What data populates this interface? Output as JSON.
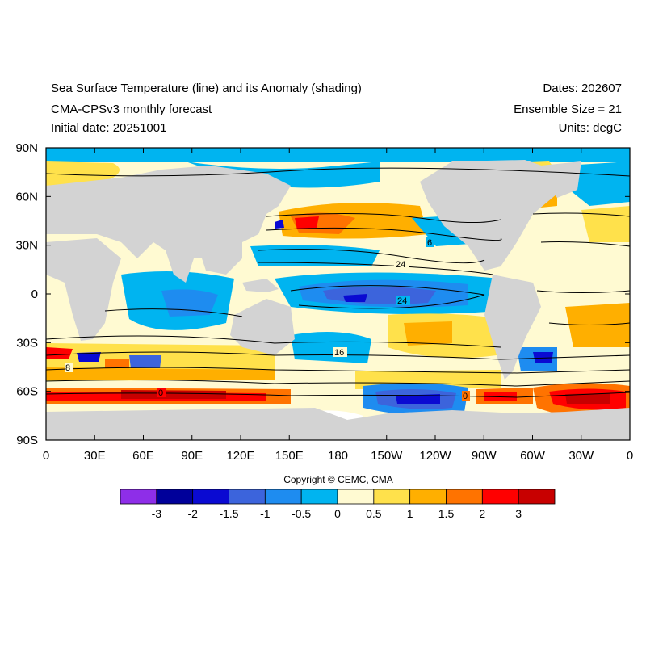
{
  "header": {
    "title": "Sea Surface Temperature (line) and its Anomaly (shading)",
    "model": "CMA-CPSv3 monthly forecast",
    "initial_date": "Initial date: 20251001",
    "dates": "Dates: 202607",
    "ensemble": "Ensemble Size = 21",
    "units": "Units: degC"
  },
  "axes": {
    "lat_labels": [
      "90N",
      "60N",
      "30N",
      "0",
      "30S",
      "60S",
      "90S"
    ],
    "lon_labels": [
      "0",
      "30E",
      "60E",
      "90E",
      "120E",
      "150E",
      "180",
      "150W",
      "120W",
      "90W",
      "60W",
      "30W",
      "0"
    ]
  },
  "contour_labels": [
    "24",
    "24",
    "16",
    "8",
    "6",
    "0",
    "0"
  ],
  "copyright": "Copyright © CEMC, CMA",
  "colorbar": {
    "colors": [
      "#8e2ee8",
      "#00009a",
      "#0a0ad2",
      "#3c64dc",
      "#1e8cf0",
      "#00b4f0",
      "#fffad2",
      "#ffe14b",
      "#ffaf00",
      "#ff7300",
      "#ff0000",
      "#c80000"
    ],
    "labels": [
      "-3",
      "-2",
      "-1.5",
      "-1",
      "-0.5",
      "0",
      "0.5",
      "1",
      "1.5",
      "2",
      "3"
    ]
  },
  "map_colors": {
    "land": "#d3d3d3",
    "neutral": "#fffad2",
    "cool": "#00b4f0",
    "cooler": "#1e8cf0",
    "cold": "#3c64dc",
    "colder": "#0a0ad2",
    "warm": "#ffe14b",
    "warmer": "#ffaf00",
    "hot": "#ff7300",
    "hotter": "#ff0000",
    "hottest": "#c80000",
    "ice": "#ffffff"
  }
}
